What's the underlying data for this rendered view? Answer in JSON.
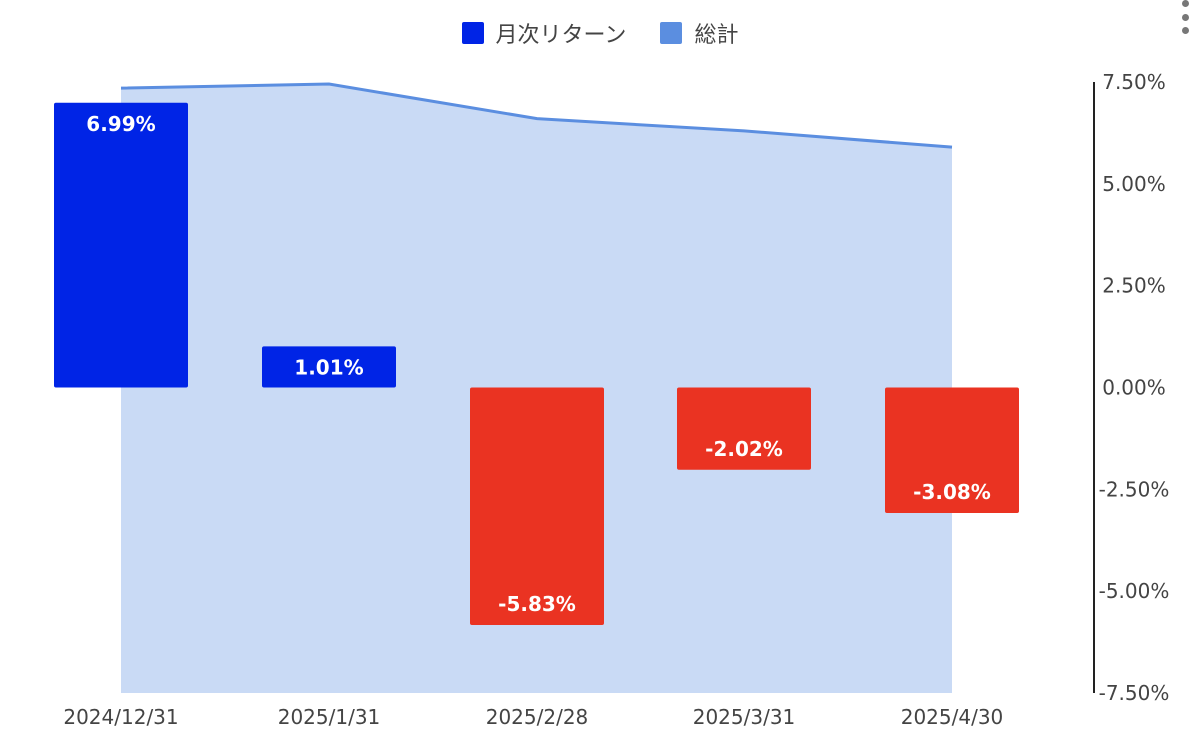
{
  "legend": {
    "bar_label": "月次リターン",
    "line_label": "総計"
  },
  "menu_icon": "more-vert-icon",
  "colors": {
    "positive": "#0024e6",
    "negative": "#ea3322",
    "total_line": "#5b8ee0",
    "total_area": "#c9daf5",
    "total_swatch": "#5b8ee0"
  },
  "chart_data": {
    "type": "bar",
    "categories": [
      "2024/12/31",
      "2025/1/31",
      "2025/2/28",
      "2025/3/31",
      "2025/4/30"
    ],
    "series": [
      {
        "name": "月次リターン",
        "type": "bar",
        "values": [
          6.99,
          1.01,
          -5.83,
          -2.02,
          -3.08
        ],
        "labels": [
          "6.99%",
          "1.01%",
          "-5.83%",
          "-2.02%",
          "-3.08%"
        ]
      },
      {
        "name": "総計",
        "type": "area",
        "values": [
          7.35,
          7.45,
          6.6,
          6.3,
          5.9
        ]
      }
    ],
    "yaxis": {
      "position": "right",
      "ylim": [
        -7.5,
        7.5
      ],
      "ticks": [
        7.5,
        5.0,
        2.5,
        0.0,
        -2.5,
        -5.0,
        -7.5
      ],
      "tick_labels": [
        "7.50%",
        "5.00%",
        "2.50%",
        "0.00%",
        "-2.50%",
        "-5.00%",
        "-7.50%"
      ]
    },
    "legend_position": "top-center",
    "grid": false
  }
}
